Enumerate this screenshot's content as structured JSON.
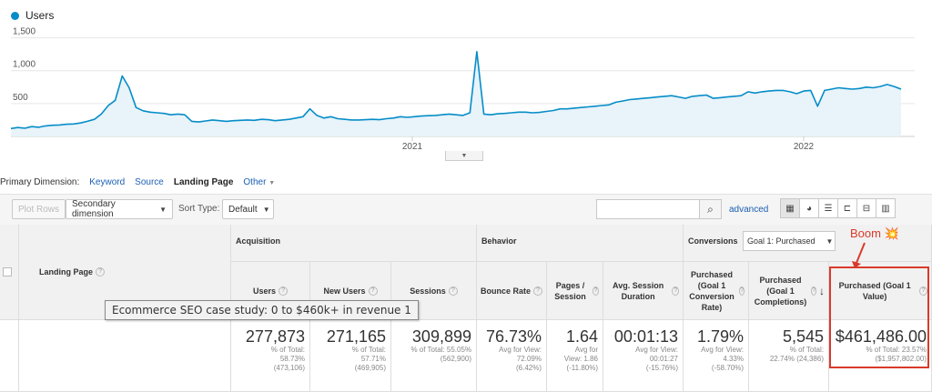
{
  "legend": {
    "series_name": "Users",
    "color": "#058dc7"
  },
  "chart_data": {
    "type": "area",
    "title": "",
    "series": [
      {
        "name": "Users",
        "values": [
          120,
          135,
          125,
          150,
          140,
          160,
          170,
          175,
          185,
          190,
          205,
          230,
          260,
          340,
          470,
          550,
          920,
          740,
          440,
          390,
          370,
          360,
          350,
          330,
          340,
          330,
          230,
          220,
          235,
          250,
          240,
          230,
          240,
          245,
          250,
          245,
          260,
          255,
          240,
          250,
          260,
          280,
          300,
          420,
          320,
          280,
          300,
          270,
          260,
          250,
          250,
          255,
          260,
          255,
          270,
          280,
          300,
          290,
          300,
          310,
          315,
          320,
          330,
          340,
          330,
          320,
          360,
          1290,
          340,
          330,
          345,
          350,
          360,
          370,
          370,
          360,
          365,
          380,
          395,
          420,
          420,
          430,
          440,
          450,
          460,
          470,
          480,
          520,
          540,
          560,
          570,
          580,
          590,
          600,
          610,
          620,
          600,
          580,
          610,
          620,
          630,
          580,
          590,
          600,
          610,
          620,
          680,
          660,
          680,
          690,
          700,
          700,
          680,
          650,
          690,
          700,
          460,
          700,
          720,
          740,
          730,
          720,
          730,
          750,
          740,
          760,
          790,
          760,
          720
        ]
      }
    ],
    "yticks": [
      "500",
      "1,000",
      "1,500"
    ],
    "xticks": [
      "2021",
      "2022"
    ],
    "ylim": [
      0,
      1550
    ],
    "grid": true
  },
  "dimension_bar": {
    "label": "Primary Dimension:",
    "options": [
      "Keyword",
      "Source",
      "Landing Page",
      "Other"
    ],
    "active": "Landing Page"
  },
  "toolbar": {
    "plot_rows": "Plot Rows",
    "secondary_dimension": "Secondary dimension",
    "sort_type_label": "Sort Type:",
    "sort_type_value": "Default",
    "search_placeholder": "",
    "advanced": "advanced"
  },
  "table": {
    "dimension_header": "Landing Page",
    "groups": {
      "acquisition": "Acquisition",
      "behavior": "Behavior",
      "conversions": "Conversions",
      "goal_select": "Goal 1: Purchased"
    },
    "columns": [
      {
        "label": "Users",
        "total": "277,873",
        "sub1": "% of Total:",
        "sub2": "58.73%",
        "sub3": "(473,106)"
      },
      {
        "label": "New Users",
        "total": "271,165",
        "sub1": "% of Total:",
        "sub2": "57.71%",
        "sub3": "(469,905)"
      },
      {
        "label": "Sessions",
        "total": "309,899",
        "sub1": "% of Total: 55.05%",
        "sub2": "(562,900)",
        "sub3": ""
      },
      {
        "label": "Bounce Rate",
        "total": "76.73%",
        "sub1": "Avg for View:",
        "sub2": "72.09%",
        "sub3": "(6.42%)"
      },
      {
        "label": "Pages / Session",
        "total": "1.64",
        "sub1": "Avg for",
        "sub2": "View: 1.86",
        "sub3": "(-11.80%)"
      },
      {
        "label": "Avg. Session Duration",
        "total": "00:01:13",
        "sub1": "Avg for View:",
        "sub2": "00:01:27",
        "sub3": "(-15.76%)"
      },
      {
        "label": "Purchased (Goal 1 Conversion Rate)",
        "total": "1.79%",
        "sub1": "Avg for View:",
        "sub2": "4.33%",
        "sub3": "(-58.70%)"
      },
      {
        "label": "Purchased (Goal 1 Completions)",
        "total": "5,545",
        "sub1": "% of Total:",
        "sub2": "22.74% (24,386)",
        "sub3": ""
      },
      {
        "label": "Purchased (Goal 1 Value)",
        "total": "$461,486.00",
        "sub1": "% of Total: 23.57%",
        "sub2": "($1,957,802.00)",
        "sub3": ""
      }
    ]
  },
  "annotation": {
    "boom": "Boom 💥",
    "color": "#d93a2b"
  },
  "tooltip": {
    "text": "Ecommerce SEO case study: 0 to $460k+ in revenue 1"
  }
}
